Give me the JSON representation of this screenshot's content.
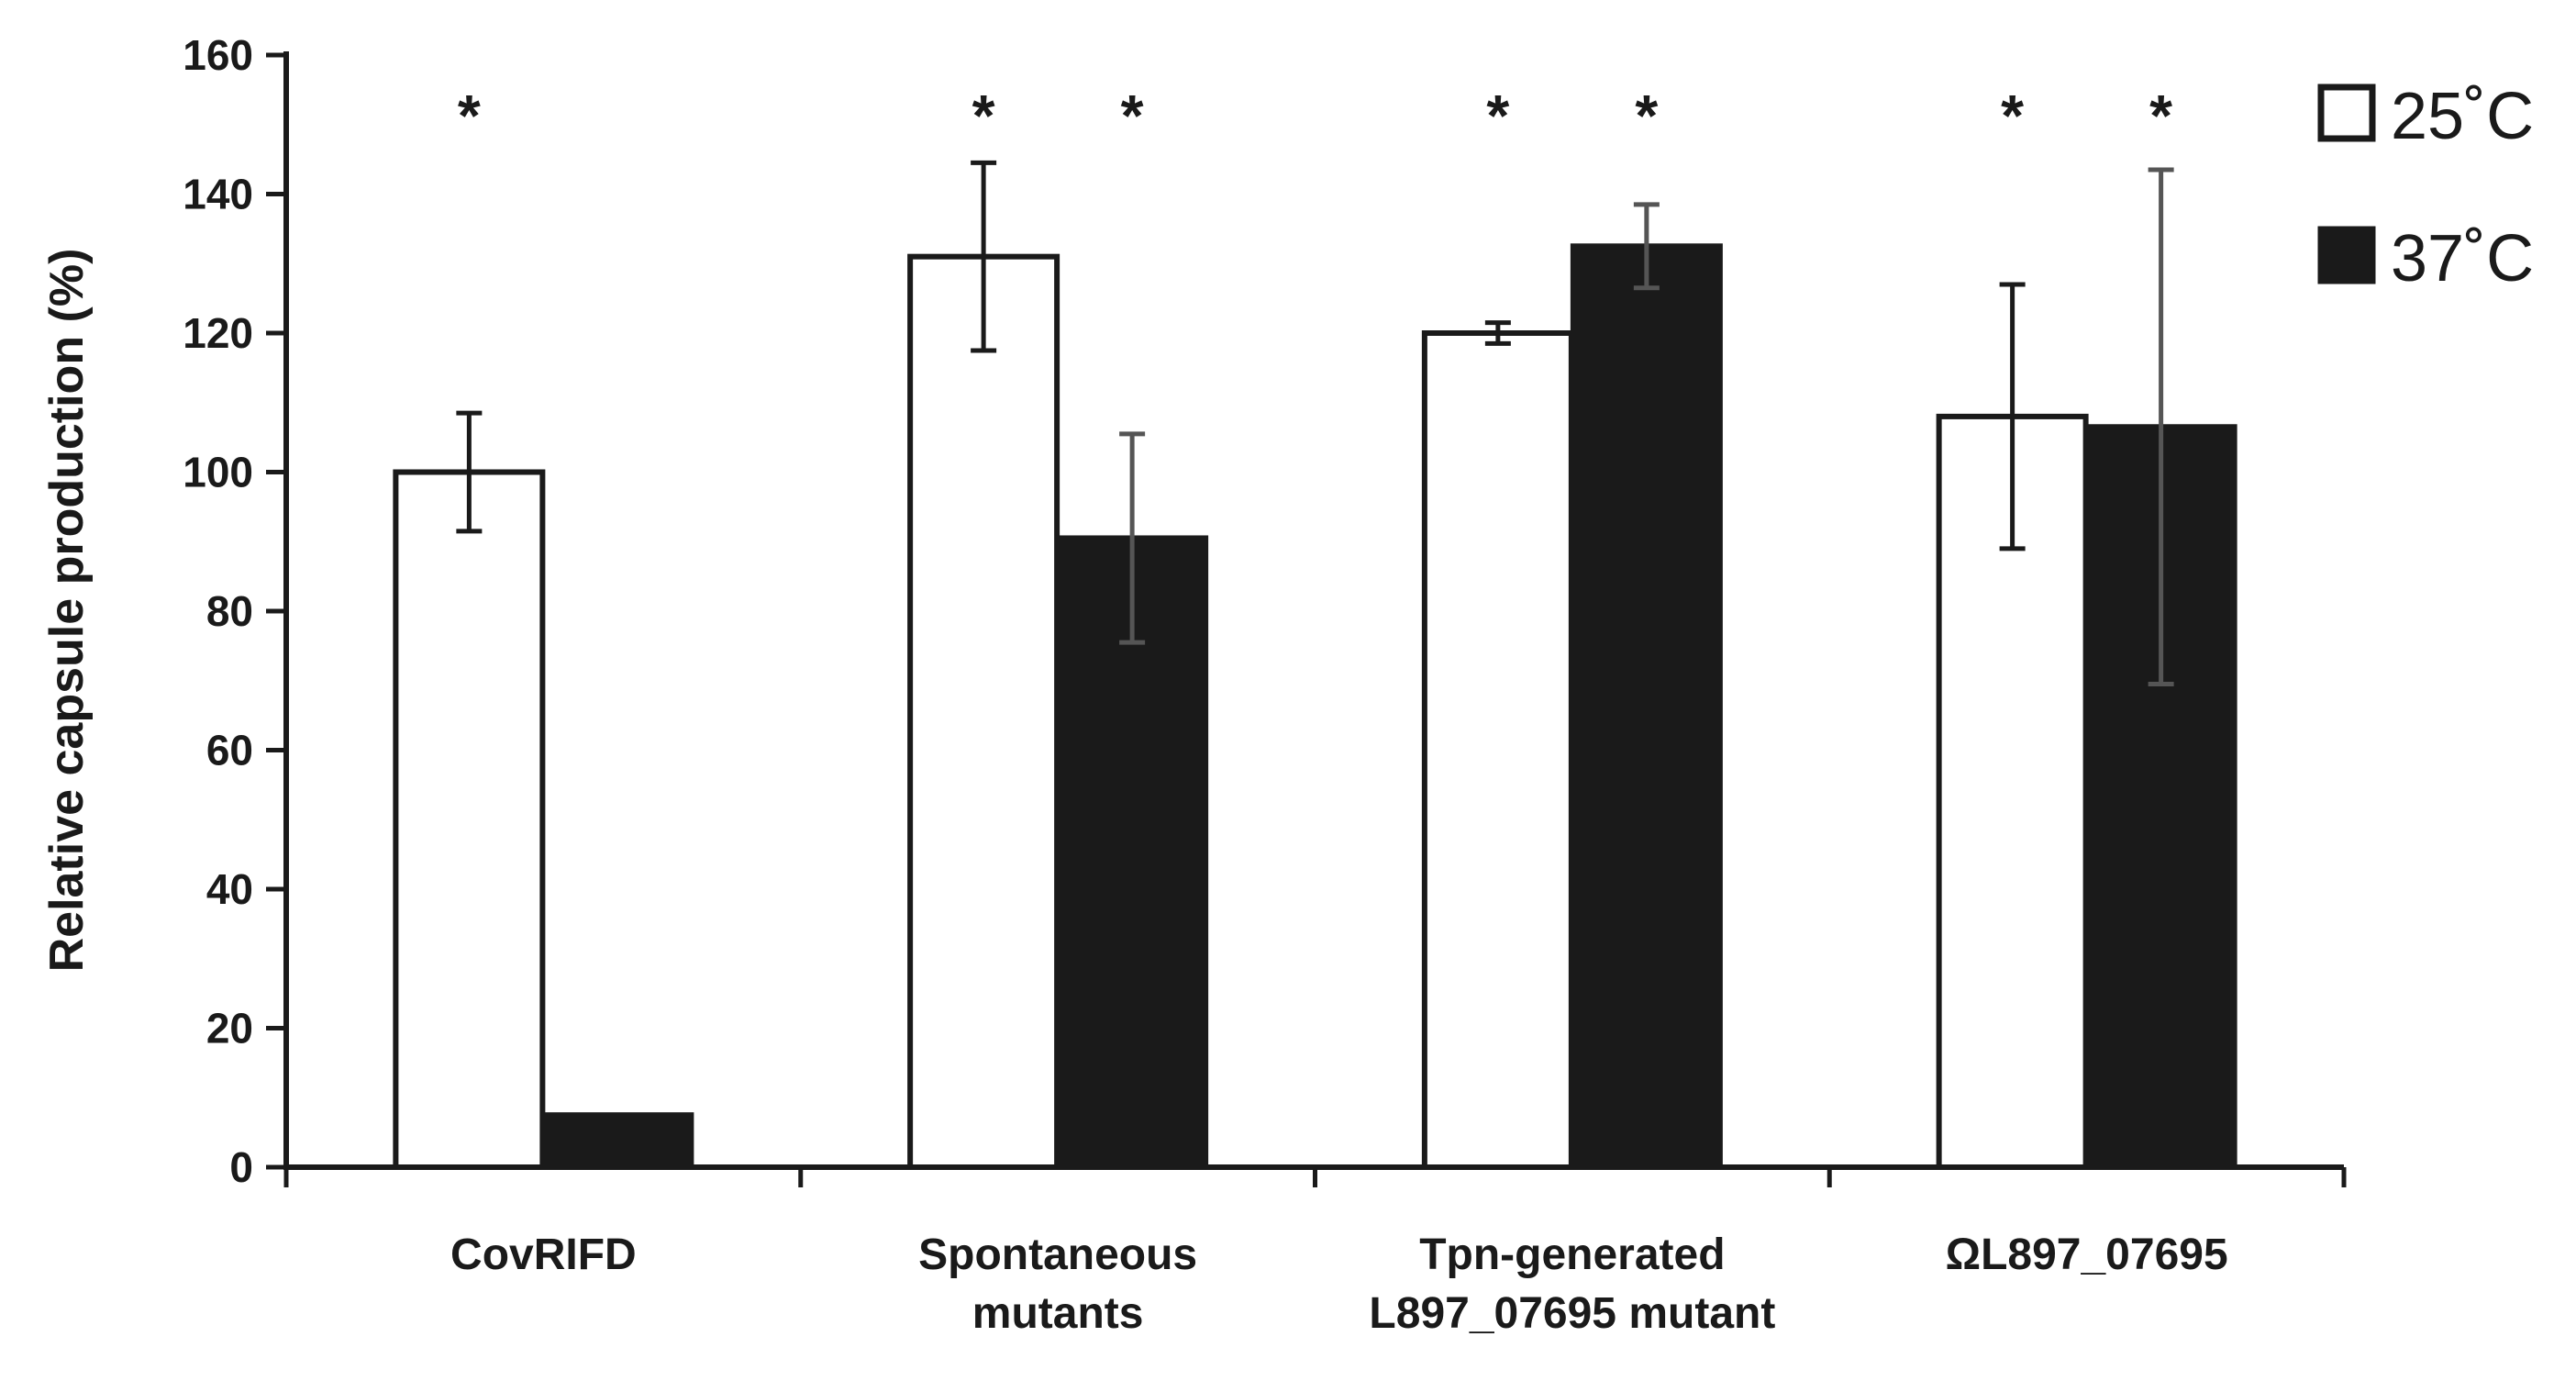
{
  "chart_data": {
    "type": "bar",
    "title": "",
    "xlabel": "",
    "ylabel": "Relative capsule production (%)",
    "ylim": [
      0,
      160
    ],
    "yticks": [
      0,
      20,
      40,
      60,
      80,
      100,
      120,
      140,
      160
    ],
    "categories": [
      [
        "CovRIFD"
      ],
      [
        "Spontaneous",
        "mutants"
      ],
      [
        "Tpn-generated",
        "L897_07695 mutant"
      ],
      [
        "ΩL897_07695"
      ]
    ],
    "series": [
      {
        "name": "25˚C",
        "color": "#ffffff",
        "values": [
          100,
          131,
          120,
          108
        ],
        "errors": [
          8.5,
          13.5,
          1.5,
          19
        ],
        "significance": [
          "*",
          "*",
          "*",
          "*"
        ]
      },
      {
        "name": "37˚C",
        "color": "#1a1a1a",
        "values": [
          7.5,
          90.5,
          132.5,
          106.5
        ],
        "errors": [
          0,
          15,
          6,
          37
        ],
        "significance": [
          "",
          "*",
          "*",
          "*"
        ]
      }
    ],
    "legend_position": "top-right"
  }
}
